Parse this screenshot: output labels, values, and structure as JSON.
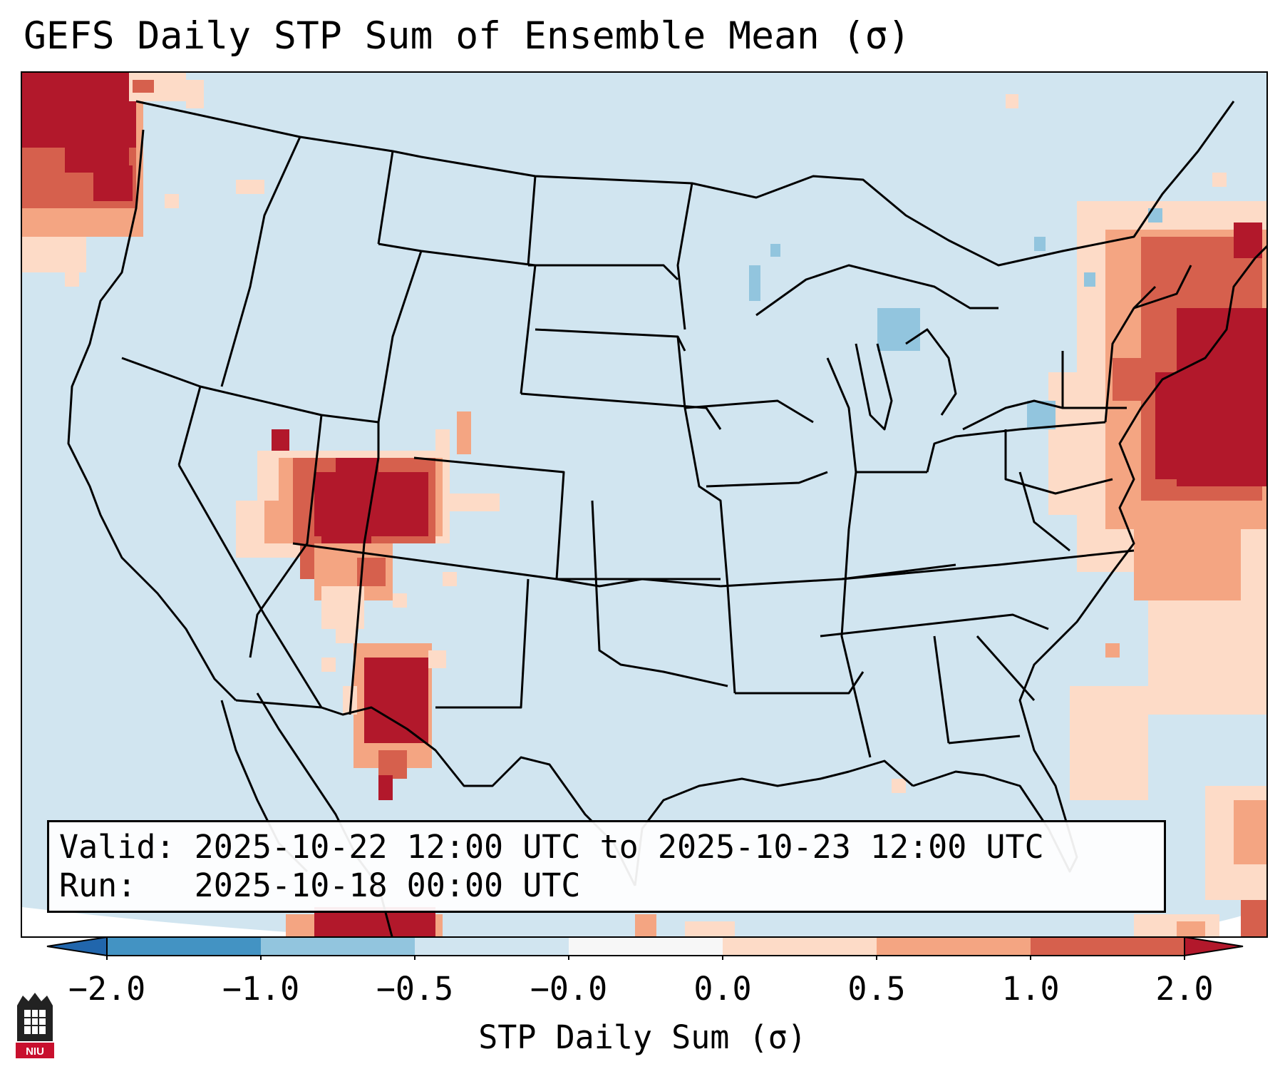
{
  "title": "GEFS Daily STP Sum of Ensemble Mean (σ)",
  "info": {
    "valid": "Valid: 2025-10-22 12:00 UTC to 2025-10-23 12:00 UTC",
    "run": "Run:   2025-10-18 00:00 UTC"
  },
  "colorbar": {
    "label": "STP Daily Sum (σ)",
    "ticks": [
      "−2.0",
      "−1.0",
      "−0.5",
      "−0.0",
      "0.0",
      "0.5",
      "1.0",
      "2.0"
    ],
    "bins": [
      {
        "range": "< -2.0",
        "color": "#2166ac"
      },
      {
        "range": "-2.0 to -1.0",
        "color": "#4393c3"
      },
      {
        "range": "-1.0 to -0.5",
        "color": "#92c5de"
      },
      {
        "range": "-0.5 to -0.0",
        "color": "#d1e5f0"
      },
      {
        "range": "-0.0 to 0.0",
        "color": "#f7f7f7"
      },
      {
        "range": "0.0 to 0.5",
        "color": "#fddbc7"
      },
      {
        "range": "0.5 to 1.0",
        "color": "#f4a582"
      },
      {
        "range": "1.0 to 2.0",
        "color": "#d6604d"
      },
      {
        "range": "> 2.0",
        "color": "#b2182b"
      }
    ]
  },
  "map": {
    "background_color": "#d1e5f0",
    "border_color": "#000000",
    "logo_text": "NIU"
  }
}
